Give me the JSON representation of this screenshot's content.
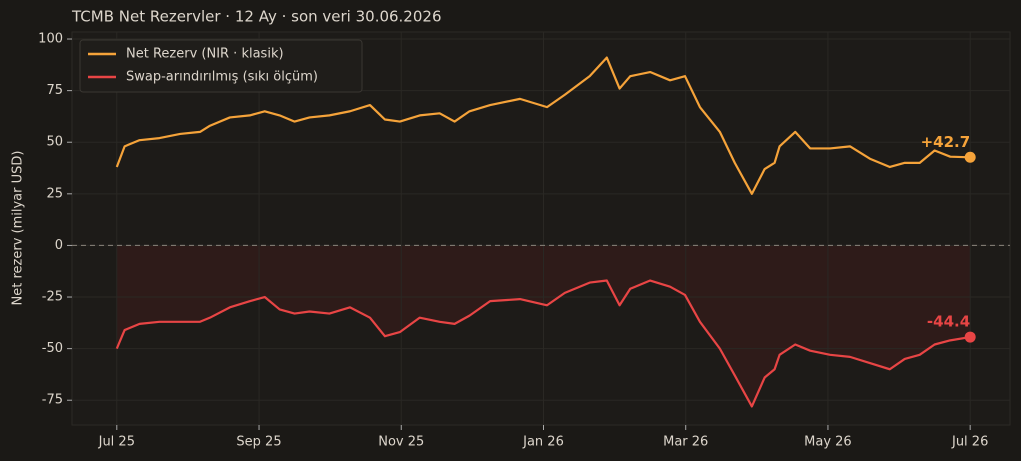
{
  "chart_data": {
    "type": "line",
    "title": "TCMB Net Rezervler · 12 Ay · son veri 30.06.2026",
    "ylabel": "Net rezerv (milyar USD)",
    "x": [
      0,
      0.11,
      0.32,
      0.6,
      0.89,
      1.17,
      1.31,
      1.59,
      1.87,
      2.08,
      2.29,
      2.5,
      2.71,
      2.99,
      3.28,
      3.56,
      3.77,
      3.98,
      4.26,
      4.54,
      4.75,
      4.96,
      5.25,
      5.67,
      6.05,
      6.3,
      6.65,
      6.89,
      7.07,
      7.22,
      7.5,
      7.78,
      7.99,
      8.2,
      8.48,
      8.69,
      8.93,
      9.11,
      9.25,
      9.32,
      9.54,
      9.75,
      10.03,
      10.31,
      10.59,
      10.87,
      11.08,
      11.29,
      11.5,
      11.72,
      12
    ],
    "series": [
      {
        "name": "Net Rezerv (NIR · klasik)",
        "color": "#f5a33a",
        "values": [
          38,
          48,
          51,
          52,
          54,
          55,
          58,
          62,
          63,
          65,
          63,
          60,
          62,
          63,
          65,
          68,
          61,
          60,
          63,
          64,
          60,
          65,
          68,
          71,
          67,
          73,
          82,
          91,
          76,
          82,
          84,
          80,
          82,
          67,
          55,
          40,
          25,
          37,
          40,
          48,
          55,
          47,
          47,
          48,
          42,
          38,
          40,
          40,
          46,
          43,
          42.7
        ],
        "value_labels": [
          null,
          null,
          null,
          null,
          null,
          null,
          null,
          null,
          null,
          null,
          null,
          null,
          null,
          null,
          null,
          null,
          null,
          null,
          null,
          null,
          null,
          null,
          null,
          null,
          null,
          null,
          null,
          null,
          null,
          null,
          null,
          null,
          null,
          null,
          null,
          null,
          null,
          null,
          null,
          null,
          null,
          null,
          null,
          null,
          null,
          null,
          null,
          null,
          null,
          null,
          "+42.7"
        ]
      },
      {
        "name": "Swap-arındırılmış (sıkı ölçüm)",
        "color": "#e84545",
        "fill": "#2e1b19",
        "values": [
          -50,
          -41,
          -38,
          -37,
          -37,
          -37,
          -35,
          -30,
          -27,
          -25,
          -31,
          -33,
          -32,
          -33,
          -30,
          -35,
          -44,
          -42,
          -35,
          -37,
          -38,
          -34,
          -27,
          -26,
          -29,
          -23,
          -18,
          -17,
          -29,
          -21,
          -17,
          -20,
          -24,
          -37,
          -50,
          -63,
          -78,
          -64,
          -60,
          -53,
          -48,
          -51,
          -53,
          -54,
          -57,
          -60,
          -55,
          -53,
          -48,
          -46,
          -44.4
        ],
        "value_labels": [
          null,
          null,
          null,
          null,
          null,
          null,
          null,
          null,
          null,
          null,
          null,
          null,
          null,
          null,
          null,
          null,
          null,
          null,
          null,
          null,
          null,
          null,
          null,
          null,
          null,
          null,
          null,
          null,
          null,
          null,
          null,
          null,
          null,
          null,
          null,
          null,
          null,
          null,
          null,
          null,
          null,
          null,
          null,
          null,
          null,
          null,
          null,
          null,
          null,
          null,
          "-44.4"
        ]
      }
    ],
    "xlim": [
      -0.63,
      12.56
    ],
    "xticks": [
      {
        "value": 0,
        "label": "Jul 25"
      },
      {
        "value": 2,
        "label": "Sep 25"
      },
      {
        "value": 4,
        "label": "Nov 25"
      },
      {
        "value": 6,
        "label": "Jan 26"
      },
      {
        "value": 8,
        "label": "Mar 26"
      },
      {
        "value": 10,
        "label": "May 26"
      },
      {
        "value": 12,
        "label": "Jul 26"
      }
    ],
    "ylim": [
      -87,
      103.4
    ],
    "yticks": [
      -75,
      -50,
      -25,
      0,
      25,
      50,
      75,
      100
    ],
    "grid": true,
    "legend": "upper left"
  }
}
